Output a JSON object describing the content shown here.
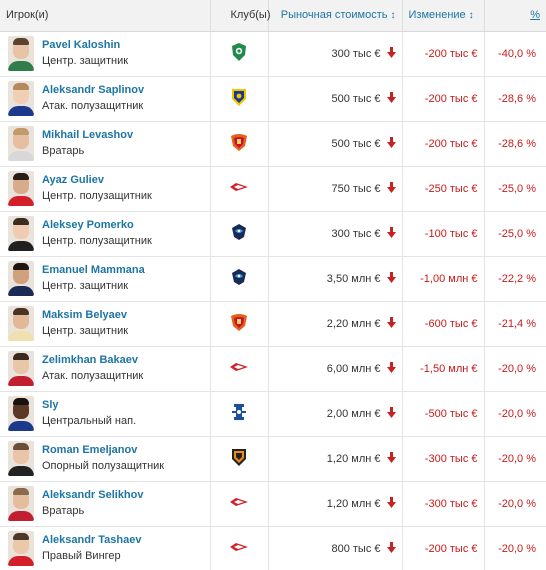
{
  "colors": {
    "link": "#1d75a3",
    "negative": "#c81a1a",
    "header_bg": "#f2f2f2",
    "down_arrow": "#c62222"
  },
  "header": {
    "player": "Игрок(и)",
    "club": "Клуб(ы)",
    "value": "Рыночная стоимость",
    "change": "Изменение",
    "pct": "%",
    "sort_icon": "↕"
  },
  "rows": [
    {
      "name": "Pavel Kaloshin",
      "position": "Центр. защитник",
      "club_icon": "akhmat-crest-icon",
      "value": "300 тыс €",
      "change": "-200 тыс €",
      "pct": "-40,0 %"
    },
    {
      "name": "Aleksandr Saplinov",
      "position": "Атак. полузащитник",
      "club_icon": "rostov-crest-icon",
      "value": "500 тыс €",
      "change": "-200 тыс €",
      "pct": "-28,6 %"
    },
    {
      "name": "Mikhail Levashov",
      "position": "Вратарь",
      "club_icon": "arsenal-tula-crest-icon",
      "value": "500 тыс €",
      "change": "-200 тыс €",
      "pct": "-28,6 %"
    },
    {
      "name": "Ayaz Guliev",
      "position": "Центр. полузащитник",
      "club_icon": "spartak-crest-icon",
      "value": "750 тыс €",
      "change": "-250 тыс €",
      "pct": "-25,0 %"
    },
    {
      "name": "Aleksey Pomerko",
      "position": "Центр. полузащитник",
      "club_icon": "sochi-crest-icon",
      "value": "300 тыс €",
      "change": "-100 тыс €",
      "pct": "-25,0 %"
    },
    {
      "name": "Emanuel Mammana",
      "position": "Центр. защитник",
      "club_icon": "sochi-crest-icon",
      "value": "3,50 млн €",
      "change": "-1,00 млн €",
      "pct": "-22,2 %"
    },
    {
      "name": "Maksim Belyaev",
      "position": "Центр. защитник",
      "club_icon": "arsenal-tula-crest-icon",
      "value": "2,20 млн €",
      "change": "-600 тыс €",
      "pct": "-21,4 %"
    },
    {
      "name": "Zelimkhan Bakaev",
      "position": "Атак. полузащитник",
      "club_icon": "spartak-crest-icon",
      "value": "6,00 млн €",
      "change": "-1,50 млн €",
      "pct": "-20,0 %"
    },
    {
      "name": "Sly",
      "position": "Центральный нап.",
      "club_icon": "dynamo-crest-icon",
      "value": "2,00 млн €",
      "change": "-500 тыс €",
      "pct": "-20,0 %"
    },
    {
      "name": "Roman Emeljanov",
      "position": "Опорный полузащитник",
      "club_icon": "ural-crest-icon",
      "value": "1,20 млн €",
      "change": "-300 тыс €",
      "pct": "-20,0 %"
    },
    {
      "name": "Aleksandr Selikhov",
      "position": "Вратарь",
      "club_icon": "spartak-crest-icon",
      "value": "1,20 млн €",
      "change": "-300 тыс €",
      "pct": "-20,0 %"
    },
    {
      "name": "Aleksandr Tashaev",
      "position": "Правый Вингер",
      "club_icon": "spartak-crest-icon",
      "value": "800 тыс €",
      "change": "-200 тыс €",
      "pct": "-20,0 %"
    }
  ]
}
